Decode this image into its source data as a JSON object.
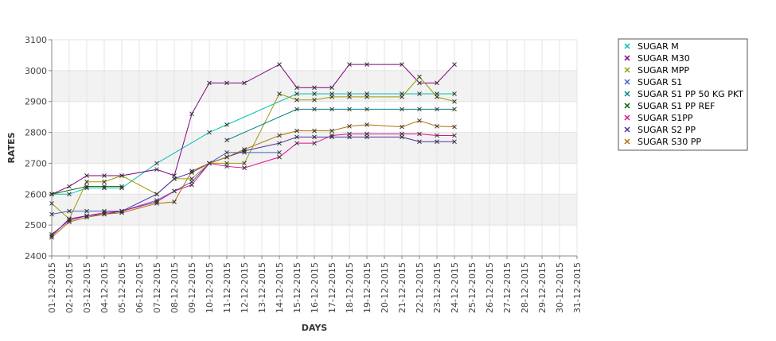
{
  "chart_data": {
    "type": "line",
    "xlabel": "DAYS",
    "ylabel": "RATES",
    "ylim": [
      2400,
      3100
    ],
    "yticks": [
      2400,
      2500,
      2600,
      2700,
      2800,
      2900,
      3000,
      3100
    ],
    "legend_position": "right",
    "grid": true,
    "x": [
      "01-12-2015",
      "02-12-2015",
      "03-12-2015",
      "04-12-2015",
      "05-12-2015",
      "06-12-2015",
      "07-12-2015",
      "08-12-2015",
      "09-12-2015",
      "10-12-2015",
      "11-12-2015",
      "12-12-2015",
      "13-12-2015",
      "14-12-2015",
      "15-12-2015",
      "16-12-2015",
      "17-12-2015",
      "18-12-2015",
      "19-12-2015",
      "20-12-2015",
      "21-12-2015",
      "22-12-2015",
      "23-12-2015",
      "24-12-2015",
      "25-12-2015",
      "26-12-2015",
      "27-12-2015",
      "28-12-2015",
      "29-12-2015",
      "30-12-2015",
      "31-12-2015"
    ],
    "series": [
      {
        "name": "SUGAR M",
        "color": "#00c0b0",
        "values": [
          2600,
          2600,
          2620,
          2620,
          2620,
          null,
          2700,
          null,
          null,
          2800,
          2825,
          null,
          null,
          null,
          2925,
          2925,
          2925,
          2925,
          2925,
          null,
          2925,
          2925,
          2925,
          2925,
          null,
          null,
          null,
          null,
          null,
          null,
          null
        ]
      },
      {
        "name": "SUGAR M30",
        "color": "#800080",
        "values": [
          2600,
          2625,
          2660,
          2660,
          2660,
          null,
          2680,
          2660,
          2860,
          2960,
          2960,
          2960,
          null,
          3020,
          2945,
          2945,
          2945,
          3020,
          3020,
          null,
          3020,
          2960,
          2960,
          3020,
          null,
          null,
          null,
          null,
          null,
          null,
          null
        ]
      },
      {
        "name": "SUGAR MPP",
        "color": "#9a9a00",
        "values": [
          2570,
          2520,
          2640,
          2640,
          2660,
          null,
          2600,
          2650,
          2650,
          2700,
          2700,
          2700,
          null,
          2925,
          2905,
          2905,
          2915,
          2915,
          2915,
          null,
          2915,
          2980,
          2915,
          2900,
          null,
          null,
          null,
          null,
          null,
          null,
          null
        ]
      },
      {
        "name": "SUGAR S1",
        "color": "#4060d0",
        "values": [
          2535,
          2545,
          2545,
          2545,
          2545,
          null,
          2580,
          2610,
          2640,
          2700,
          2735,
          2735,
          null,
          2735,
          null,
          null,
          null,
          null,
          null,
          null,
          null,
          null,
          null,
          null,
          null,
          null,
          null,
          null,
          null,
          null,
          null
        ]
      },
      {
        "name": "SUGAR S1 PP 50 KG PKT",
        "color": "#008080",
        "values": [
          null,
          null,
          null,
          null,
          null,
          null,
          null,
          null,
          null,
          null,
          2775,
          null,
          null,
          null,
          2875,
          2875,
          2875,
          2875,
          2875,
          null,
          2875,
          2875,
          2875,
          2875,
          null,
          null,
          null,
          null,
          null,
          null,
          null
        ]
      },
      {
        "name": "SUGAR S1 PP REF",
        "color": "#006000",
        "values": [
          2600,
          null,
          2625,
          2625,
          2625,
          null,
          null,
          null,
          null,
          null,
          null,
          null,
          null,
          null,
          null,
          null,
          null,
          null,
          null,
          null,
          null,
          null,
          null,
          null,
          null,
          null,
          null,
          null,
          null,
          null,
          null
        ]
      },
      {
        "name": "SUGAR S1PP",
        "color": "#e0108a",
        "values": [
          2470,
          2515,
          2530,
          2540,
          2545,
          null,
          2575,
          2610,
          2630,
          2700,
          2690,
          2685,
          null,
          2720,
          2765,
          2765,
          2790,
          2795,
          2795,
          null,
          2795,
          2795,
          2790,
          2790,
          null,
          null,
          null,
          null,
          null,
          null,
          null
        ]
      },
      {
        "name": "SUGAR S2 PP",
        "color": "#5030a0",
        "values": [
          2465,
          2520,
          2530,
          2535,
          2545,
          null,
          2600,
          2650,
          2670,
          2700,
          2720,
          2740,
          null,
          2765,
          2785,
          2785,
          2785,
          2785,
          2785,
          null,
          2785,
          2770,
          2770,
          2770,
          null,
          null,
          null,
          null,
          null,
          null,
          null
        ]
      },
      {
        "name": "SUGAR S30 PP",
        "color": "#b07000",
        "values": [
          2460,
          2510,
          2525,
          2535,
          2540,
          null,
          2570,
          2575,
          2675,
          2700,
          2720,
          2745,
          null,
          2790,
          2805,
          2805,
          2805,
          2820,
          2825,
          null,
          2818,
          2838,
          2820,
          2818,
          null,
          null,
          null,
          null,
          null,
          null,
          null
        ]
      }
    ]
  }
}
